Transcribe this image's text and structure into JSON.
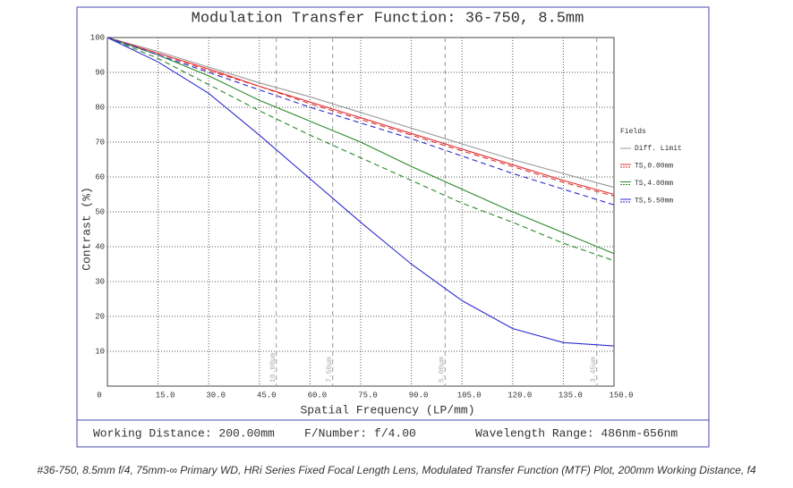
{
  "chart_data": {
    "type": "line",
    "title": "Modulation Transfer Function: 36-750, 8.5mm",
    "x_label": "Spatial Frequency (LP/mm)",
    "y_label": "Contrast (%)",
    "xlim": [
      0,
      150
    ],
    "ylim": [
      0,
      100
    ],
    "xticks": [
      0,
      {
        "value": 15,
        "label": "15.0"
      },
      {
        "value": 30,
        "label": "30.0"
      },
      {
        "value": 45,
        "label": "45.0"
      },
      {
        "value": 60,
        "label": "60.0"
      },
      {
        "value": 75,
        "label": "75.0"
      },
      {
        "value": 90,
        "label": "90.0"
      },
      {
        "value": 105,
        "label": "105.0"
      },
      {
        "value": 120,
        "label": "120.0"
      },
      {
        "value": 135,
        "label": "135.0"
      },
      {
        "value": 150,
        "label": "150.0"
      }
    ],
    "yticks": [
      10,
      20,
      30,
      40,
      50,
      60,
      70,
      80,
      90,
      100
    ],
    "grid": true,
    "legend_title": "Fields",
    "x": [
      0,
      15,
      30,
      45,
      60,
      75,
      90,
      105,
      120,
      135,
      150
    ],
    "series": [
      {
        "name": "Diff. Limit",
        "color": "#999999",
        "values": [
          100,
          96,
          91.5,
          87,
          83,
          78.5,
          74,
          69.5,
          65,
          61,
          57
        ]
      },
      {
        "name": "TS,0.00mm",
        "color": "#e03030",
        "values": [
          100,
          95.5,
          91,
          86,
          81.5,
          77,
          72.5,
          68,
          63.5,
          59,
          55
        ],
        "sagittal": [
          100,
          95.5,
          90.5,
          86,
          81,
          76.5,
          72,
          67.5,
          63,
          58.5,
          54.5
        ]
      },
      {
        "name": "TS,4.00mm",
        "color": "#2a8a2a",
        "values": [
          100,
          95,
          89,
          82,
          76,
          70,
          63,
          56.5,
          50,
          44,
          38
        ],
        "sagittal": [
          100,
          94,
          86.5,
          79,
          72,
          65.5,
          59,
          52.5,
          47,
          41,
          36
        ]
      },
      {
        "name": "TS,5.50mm",
        "color": "#2a2ad0",
        "values": [
          100,
          93,
          84,
          72,
          59.5,
          47,
          35,
          24.5,
          16.5,
          12.5,
          11.5
        ],
        "sagittal": [
          100,
          95,
          90,
          85,
          80,
          75.5,
          71,
          66,
          61,
          56.5,
          52
        ]
      }
    ],
    "markers": [
      {
        "x": 50,
        "label": "10.00μm"
      },
      {
        "x": 66.7,
        "label": "7.50μm"
      },
      {
        "x": 100,
        "label": "5.00μm"
      },
      {
        "x": 144.9,
        "label": "3.45μm"
      }
    ],
    "footer": [
      "Working Distance: 200.00mm",
      "F/Number: f/4.00",
      "Wavelength Range: 486nm-656nm"
    ],
    "caption": "#36-750, 8.5mm f/4, 75mm-∞ Primary WD, HRi Series Fixed Focal Length Lens, Modulated Transfer Function (MTF) Plot, 200mm Working Distance, f4"
  }
}
